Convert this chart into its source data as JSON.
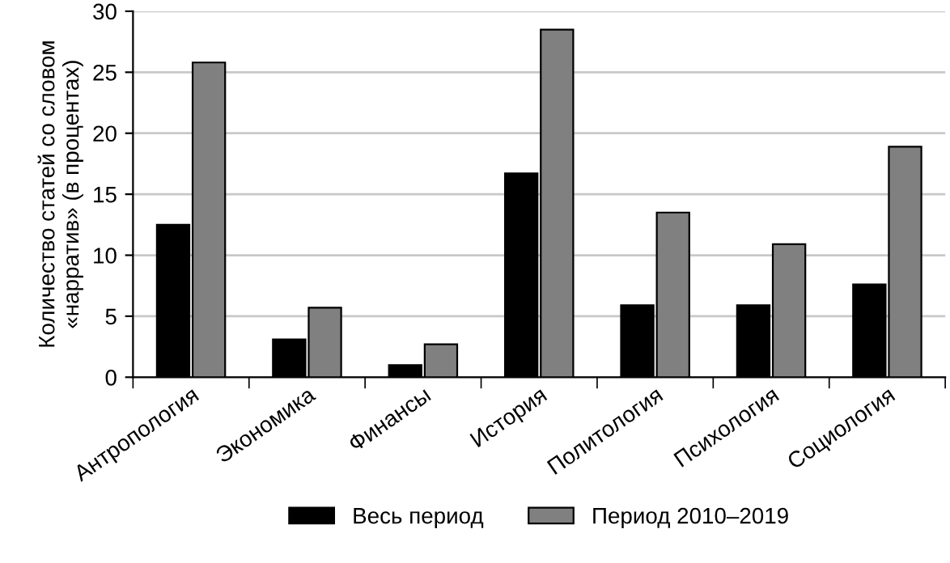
{
  "chart_data": {
    "type": "bar",
    "ylabel": "Количество статей со словом\n«нарратив» (в процентах)",
    "categories": [
      "Антропология",
      "Экономика",
      "Финансы",
      "История",
      "Политология",
      "Психология",
      "Социология"
    ],
    "series": [
      {
        "name": "Весь период",
        "color": "#000000",
        "values": [
          12.5,
          3.1,
          1.0,
          16.7,
          5.9,
          5.9,
          7.6
        ]
      },
      {
        "name": "Период 2010–2019",
        "color": "#808080",
        "values": [
          25.8,
          5.7,
          2.7,
          28.5,
          13.5,
          10.9,
          18.9
        ]
      }
    ],
    "ylim": [
      0,
      30
    ],
    "yticks": [
      0,
      5,
      10,
      15,
      20,
      25,
      30
    ],
    "grid": "y",
    "legend": "bottom"
  }
}
